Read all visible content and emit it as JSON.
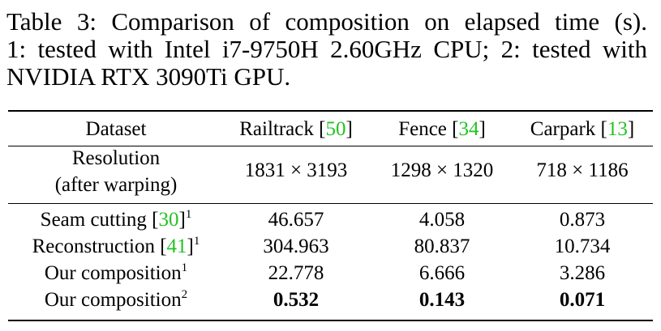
{
  "caption_lines": [
    "Table 3: Comparison of composition on elapsed time (s).",
    "1: tested with Intel i7-9750H 2.60GHz CPU; 2: tested with",
    "NVIDIA RTX 3090Ti GPU."
  ],
  "table": {
    "header": [
      {
        "text": "Dataset"
      },
      {
        "text": "Railtrack [",
        "ref": "50",
        "close": "]"
      },
      {
        "text": "Fence [",
        "ref": "34",
        "close": "]"
      },
      {
        "text": "Carpark [",
        "ref": "13",
        "close": "]"
      }
    ],
    "resolution": {
      "label": [
        "Resolution",
        "(after warping)"
      ],
      "values": [
        "1831 × 3193",
        "1298 × 1320",
        "718 × 1186"
      ]
    },
    "rows": [
      {
        "label": {
          "text": "Seam cutting [",
          "ref": "30",
          "close": "]",
          "sup": "1"
        },
        "values": [
          46.657,
          4.058,
          0.873
        ]
      },
      {
        "label": {
          "text": "Reconstruction [",
          "ref": "41",
          "close": "]",
          "sup": "1"
        },
        "values": [
          304.963,
          80.837,
          10.734
        ]
      },
      {
        "label": {
          "text": "Our composition",
          "sup": "1"
        },
        "values": [
          22.778,
          6.666,
          3.286
        ]
      },
      {
        "label": {
          "text": "Our composition",
          "sup": "2"
        },
        "values": [
          0.532,
          0.143,
          0.071
        ],
        "bold": true
      }
    ]
  }
}
